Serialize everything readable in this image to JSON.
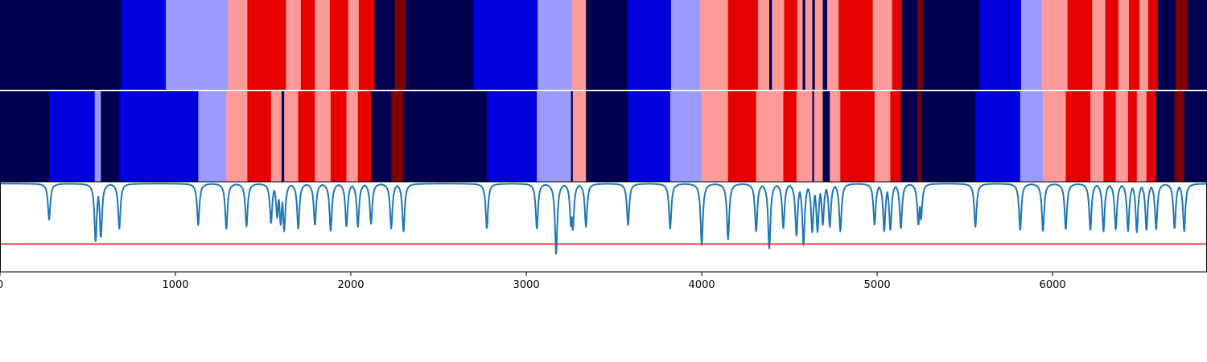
{
  "chart_data": {
    "type": "heatmap",
    "xlim": [
      0,
      6880
    ],
    "x_ticks": [
      0,
      1000,
      2000,
      3000,
      4000,
      5000,
      6000
    ],
    "x_tick_labels": [
      "0",
      "1000",
      "2000",
      "3000",
      "4000",
      "5000",
      "6000"
    ],
    "state_colors": [
      "#000050",
      "#0000dc",
      "#9a9aff",
      "#ff9a9a",
      "#e60000",
      "#800000"
    ],
    "segment_track_1": [
      [
        0,
        690,
        0
      ],
      [
        690,
        945,
        1
      ],
      [
        945,
        1300,
        2
      ],
      [
        1300,
        1410,
        3
      ],
      [
        1410,
        1630,
        4
      ],
      [
        1630,
        1715,
        3
      ],
      [
        1715,
        1795,
        4
      ],
      [
        1795,
        1880,
        3
      ],
      [
        1880,
        1985,
        4
      ],
      [
        1985,
        2045,
        3
      ],
      [
        2045,
        2135,
        4
      ],
      [
        2135,
        2250,
        0
      ],
      [
        2250,
        2310,
        5
      ],
      [
        2310,
        2700,
        0
      ],
      [
        2700,
        3065,
        1
      ],
      [
        3065,
        3260,
        2
      ],
      [
        3260,
        3340,
        3
      ],
      [
        3340,
        3575,
        0
      ],
      [
        3575,
        3825,
        1
      ],
      [
        3825,
        3990,
        2
      ],
      [
        3990,
        4150,
        3
      ],
      [
        4150,
        4320,
        4
      ],
      [
        4320,
        4385,
        3
      ],
      [
        4385,
        4400,
        0
      ],
      [
        4400,
        4470,
        3
      ],
      [
        4470,
        4545,
        4
      ],
      [
        4545,
        4575,
        3
      ],
      [
        4575,
        4590,
        0
      ],
      [
        4590,
        4630,
        3
      ],
      [
        4630,
        4645,
        0
      ],
      [
        4645,
        4690,
        3
      ],
      [
        4690,
        4715,
        0
      ],
      [
        4715,
        4780,
        3
      ],
      [
        4780,
        4975,
        4
      ],
      [
        4975,
        5085,
        3
      ],
      [
        5085,
        5140,
        4
      ],
      [
        5140,
        5230,
        0
      ],
      [
        5230,
        5260,
        5
      ],
      [
        5260,
        5585,
        0
      ],
      [
        5585,
        5820,
        1
      ],
      [
        5820,
        5940,
        2
      ],
      [
        5940,
        6085,
        3
      ],
      [
        6085,
        6225,
        4
      ],
      [
        6225,
        6300,
        3
      ],
      [
        6300,
        6375,
        4
      ],
      [
        6375,
        6435,
        3
      ],
      [
        6435,
        6495,
        4
      ],
      [
        6495,
        6545,
        3
      ],
      [
        6545,
        6600,
        4
      ],
      [
        6600,
        6700,
        0
      ],
      [
        6700,
        6770,
        5
      ],
      [
        6770,
        6880,
        0
      ]
    ],
    "segment_track_2": [
      [
        0,
        280,
        0
      ],
      [
        280,
        540,
        1
      ],
      [
        540,
        575,
        2
      ],
      [
        575,
        680,
        0
      ],
      [
        680,
        1130,
        1
      ],
      [
        1130,
        1290,
        2
      ],
      [
        1290,
        1410,
        3
      ],
      [
        1410,
        1545,
        4
      ],
      [
        1545,
        1605,
        3
      ],
      [
        1605,
        1620,
        0
      ],
      [
        1620,
        1700,
        3
      ],
      [
        1700,
        1795,
        4
      ],
      [
        1795,
        1885,
        3
      ],
      [
        1885,
        1975,
        4
      ],
      [
        1975,
        2040,
        3
      ],
      [
        2040,
        2115,
        4
      ],
      [
        2115,
        2230,
        0
      ],
      [
        2230,
        2300,
        5
      ],
      [
        2300,
        2775,
        0
      ],
      [
        2775,
        3060,
        1
      ],
      [
        3060,
        3255,
        2
      ],
      [
        3255,
        3265,
        0
      ],
      [
        3265,
        3340,
        3
      ],
      [
        3340,
        3580,
        0
      ],
      [
        3580,
        3820,
        1
      ],
      [
        3820,
        4000,
        2
      ],
      [
        4000,
        4150,
        3
      ],
      [
        4150,
        4310,
        4
      ],
      [
        4310,
        4465,
        3
      ],
      [
        4465,
        4540,
        4
      ],
      [
        4540,
        4630,
        3
      ],
      [
        4630,
        4640,
        0
      ],
      [
        4640,
        4690,
        3
      ],
      [
        4690,
        4730,
        0
      ],
      [
        4730,
        4790,
        3
      ],
      [
        4790,
        4985,
        4
      ],
      [
        4985,
        5075,
        3
      ],
      [
        5075,
        5135,
        4
      ],
      [
        5135,
        5230,
        0
      ],
      [
        5230,
        5250,
        5
      ],
      [
        5250,
        5560,
        0
      ],
      [
        5560,
        5815,
        1
      ],
      [
        5815,
        5945,
        2
      ],
      [
        5945,
        6075,
        3
      ],
      [
        6075,
        6215,
        4
      ],
      [
        6215,
        6290,
        3
      ],
      [
        6290,
        6360,
        4
      ],
      [
        6360,
        6430,
        3
      ],
      [
        6430,
        6480,
        4
      ],
      [
        6480,
        6535,
        3
      ],
      [
        6535,
        6590,
        4
      ],
      [
        6590,
        6695,
        0
      ],
      [
        6695,
        6750,
        5
      ],
      [
        6750,
        6880,
        0
      ]
    ],
    "signal_ylim": [
      0,
      1
    ],
    "signal_baseline": 0.98,
    "signal_dips": [
      [
        280,
        0.58
      ],
      [
        545,
        0.33
      ],
      [
        575,
        0.38
      ],
      [
        680,
        0.48
      ],
      [
        1130,
        0.52
      ],
      [
        1290,
        0.48
      ],
      [
        1405,
        0.5
      ],
      [
        1545,
        0.54
      ],
      [
        1580,
        0.6
      ],
      [
        1600,
        0.52
      ],
      [
        1620,
        0.45
      ],
      [
        1700,
        0.48
      ],
      [
        1795,
        0.52
      ],
      [
        1885,
        0.45
      ],
      [
        1975,
        0.5
      ],
      [
        2040,
        0.5
      ],
      [
        2115,
        0.53
      ],
      [
        2230,
        0.48
      ],
      [
        2300,
        0.45
      ],
      [
        2775,
        0.48
      ],
      [
        3060,
        0.48
      ],
      [
        3170,
        0.2
      ],
      [
        3255,
        0.5
      ],
      [
        3265,
        0.46
      ],
      [
        3340,
        0.5
      ],
      [
        3580,
        0.52
      ],
      [
        3820,
        0.48
      ],
      [
        4000,
        0.3
      ],
      [
        4150,
        0.36
      ],
      [
        4310,
        0.45
      ],
      [
        4385,
        0.25
      ],
      [
        4465,
        0.48
      ],
      [
        4540,
        0.4
      ],
      [
        4580,
        0.3
      ],
      [
        4630,
        0.44
      ],
      [
        4660,
        0.44
      ],
      [
        4690,
        0.52
      ],
      [
        4730,
        0.5
      ],
      [
        4790,
        0.45
      ],
      [
        4985,
        0.52
      ],
      [
        5040,
        0.45
      ],
      [
        5075,
        0.46
      ],
      [
        5135,
        0.48
      ],
      [
        5235,
        0.52
      ],
      [
        5250,
        0.58
      ],
      [
        5560,
        0.5
      ],
      [
        5815,
        0.46
      ],
      [
        5945,
        0.45
      ],
      [
        6075,
        0.47
      ],
      [
        6215,
        0.46
      ],
      [
        6290,
        0.45
      ],
      [
        6360,
        0.47
      ],
      [
        6430,
        0.45
      ],
      [
        6480,
        0.44
      ],
      [
        6535,
        0.46
      ],
      [
        6590,
        0.47
      ],
      [
        6695,
        0.48
      ],
      [
        6750,
        0.45
      ]
    ],
    "threshold": 0.31,
    "signal_color": "#1f77b4",
    "threshold_color": "#e62222"
  }
}
